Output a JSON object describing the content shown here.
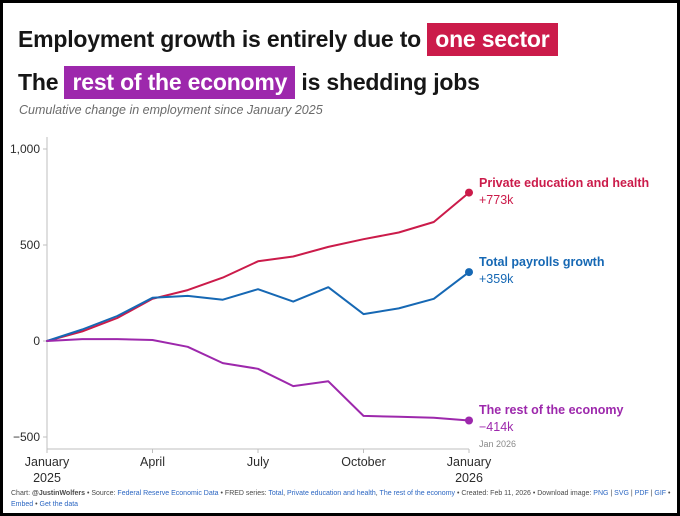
{
  "title": {
    "line1_prefix": "Employment growth is entirely due to ",
    "line1_highlight": "one sector",
    "line2_prefix": "The ",
    "line2_highlight": "rest of the economy",
    "line2_suffix": " is shedding jobs"
  },
  "subtitle": "Cumulative change in employment since January 2025",
  "colors": {
    "red": "#cb1b4a",
    "blue": "#1668b4",
    "purple": "#9d28ac",
    "axis": "#bfbfbf",
    "tick_text": "#2c2c2c",
    "muted": "#8a8a8a",
    "link": "#2b66c2"
  },
  "chart_data": {
    "type": "line",
    "title": "Employment growth is entirely due to one sector. The rest of the economy is shedding jobs",
    "subtitle": "Cumulative change in employment since January 2025",
    "x": [
      "Jan 2025",
      "Feb 2025",
      "Mar 2025",
      "Apr 2025",
      "May 2025",
      "Jun 2025",
      "Jul 2025",
      "Aug 2025",
      "Sep 2025",
      "Oct 2025",
      "Nov 2025",
      "Dec 2025",
      "Jan 2026"
    ],
    "ylim": [
      -500,
      1000
    ],
    "yticks": [
      1000,
      500,
      0,
      -500
    ],
    "ytick_labels": [
      "1,000",
      "500",
      "0",
      "−500"
    ],
    "xticks": [
      {
        "index": 0,
        "label": "January",
        "sublabel": "2025"
      },
      {
        "index": 3,
        "label": "April"
      },
      {
        "index": 6,
        "label": "July"
      },
      {
        "index": 9,
        "label": "October"
      },
      {
        "index": 12,
        "label": "January",
        "sublabel": "2026"
      }
    ],
    "grid": false,
    "legend_position": "end-labels-right",
    "series": [
      {
        "name": "Private education and health",
        "color_key": "red",
        "values": [
          0,
          50,
          120,
          220,
          265,
          330,
          415,
          440,
          490,
          530,
          565,
          620,
          773
        ],
        "end_label": "Private education and health",
        "end_value_label": "+773k"
      },
      {
        "name": "Total payrolls growth",
        "color_key": "blue",
        "values": [
          0,
          60,
          130,
          225,
          235,
          215,
          270,
          205,
          280,
          140,
          170,
          220,
          359
        ],
        "end_label": "Total payrolls growth",
        "end_value_label": "+359k"
      },
      {
        "name": "The rest of the economy",
        "color_key": "purple",
        "values": [
          0,
          10,
          10,
          5,
          -30,
          -115,
          -145,
          -235,
          -210,
          -390,
          -395,
          -400,
          -414
        ],
        "end_label": "The rest of the economy",
        "end_value_label": "−414k"
      }
    ],
    "end_note": "Jan 2026"
  },
  "footer": {
    "segments": [
      {
        "text": "Chart: "
      },
      {
        "text": "@JustinWolfers",
        "bold": true
      },
      {
        "text": " • Source: "
      },
      {
        "text": "Federal Reserve Economic Data",
        "link": true
      },
      {
        "text": " • FRED series: "
      },
      {
        "text": "Total",
        "link": true
      },
      {
        "text": ", "
      },
      {
        "text": "Private education and health",
        "link": true
      },
      {
        "text": ", "
      },
      {
        "text": "The rest of the economy",
        "link": true
      },
      {
        "text": " • Created: Feb 11, 2026 • Download image: "
      },
      {
        "text": "PNG",
        "link": true
      },
      {
        "text": " | "
      },
      {
        "text": "SVG",
        "link": true
      },
      {
        "text": " | "
      },
      {
        "text": "PDF",
        "link": true
      },
      {
        "text": " | "
      },
      {
        "text": "GIF",
        "link": true
      },
      {
        "text": " • "
      },
      {
        "text": "Embed",
        "link": true
      },
      {
        "text": " • "
      },
      {
        "text": "Get the data",
        "link": true
      }
    ]
  }
}
